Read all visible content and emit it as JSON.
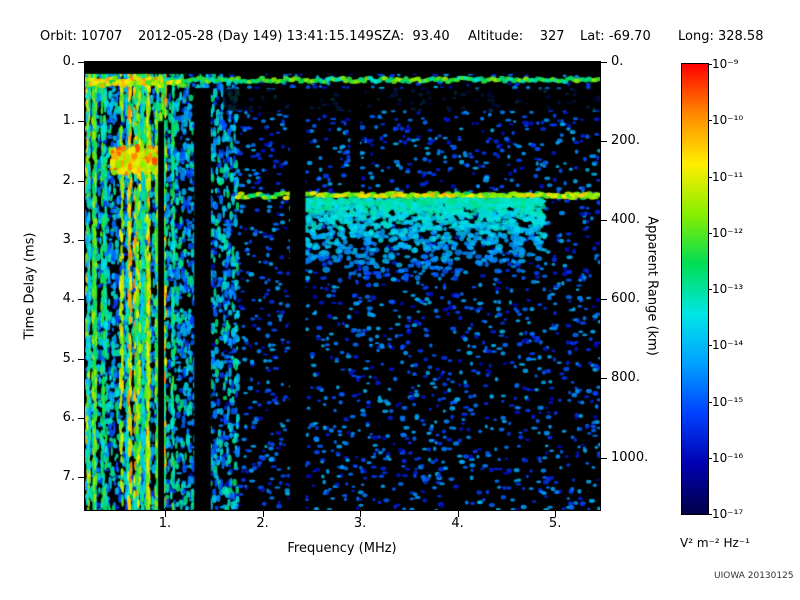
{
  "header": {
    "items": [
      "Orbit: 10707",
      "2012-05-28 (Day 149) 13:41:15.149",
      "SZA:  93.40",
      "Altitude:    327",
      "Lat: -69.70",
      "Long: 328.58"
    ]
  },
  "credit": "UIOWA 20130125",
  "chart_data": {
    "type": "heatmap",
    "title": "",
    "xlabel": "Frequency (MHz)",
    "ylabel_left": "Time Delay (ms)",
    "ylabel_right": "Apparent Range (km)",
    "x_range_mhz": [
      0.18,
      5.46
    ],
    "y_range_ms": [
      0,
      7.55
    ],
    "range_km_per_ms": 150,
    "x_ticks": {
      "values": [
        1,
        2,
        3,
        4,
        5
      ],
      "labels": [
        "1.",
        "2.",
        "3.",
        "4.",
        "5."
      ]
    },
    "y_ticks_left": {
      "values": [
        0,
        1,
        2,
        3,
        4,
        5,
        6,
        7
      ],
      "labels": [
        "0.",
        "1.",
        "2.",
        "3.",
        "4.",
        "5.",
        "6.",
        "7."
      ]
    },
    "y_ticks_right": {
      "values_km": [
        0,
        200,
        400,
        600,
        800,
        1000
      ],
      "labels": [
        "0.",
        "200.",
        "400.",
        "600.",
        "800.",
        "1000."
      ]
    },
    "colorbar": {
      "unit": "V² m⁻² Hz⁻¹",
      "tick_labels": [
        "10⁻⁹",
        "10⁻¹⁰",
        "10⁻¹¹",
        "10⁻¹²",
        "10⁻¹³",
        "10⁻¹⁴",
        "10⁻¹⁵",
        "10⁻¹⁶",
        "10⁻¹⁷"
      ],
      "min_exp": -17,
      "max_exp": -9,
      "gradient_top_to_bottom": [
        "#ff0000",
        "#ff8800",
        "#ffee00",
        "#88ee00",
        "#00dd55",
        "#00e6e6",
        "#00a0ff",
        "#0040ff",
        "#0000b0",
        "#000048"
      ]
    },
    "features": {
      "background_color": "#000000",
      "noise_seed": 42,
      "low_freq_noise_max_mhz": 1.75,
      "bright_streak_region_mhz": [
        0.2,
        1.0
      ],
      "bright_patch": {
        "freq_mhz": [
          0.45,
          0.95
        ],
        "delay_ms": [
          1.45,
          1.85
        ]
      },
      "top_band_delay_ms": 0.3,
      "quiet_band": {
        "freq_mhz": [
          1.6,
          5.46
        ],
        "delay_ms": [
          0.45,
          0.82
        ]
      },
      "echo_trace": {
        "delay_ms": 2.25,
        "freq_start_mhz": 1.75,
        "diffuse_cloud_freq_mhz": [
          2.3,
          4.9
        ],
        "diffuse_cloud_max_delay_ms": 3.7
      },
      "rfi_gaps": [
        {
          "freq_mhz": [
            0.93,
            0.99
          ],
          "delay_ms": [
            1.0,
            7.55
          ]
        },
        {
          "freq_mhz": [
            1.3,
            1.47
          ],
          "delay_ms": [
            0.44,
            7.55
          ]
        },
        {
          "freq_mhz": [
            2.28,
            2.44
          ],
          "delay_ms": [
            0.44,
            7.55
          ]
        },
        {
          "freq_mhz": [
            2.9,
            3.0
          ],
          "delay_ms": [
            0.44,
            2.2
          ]
        }
      ]
    }
  }
}
